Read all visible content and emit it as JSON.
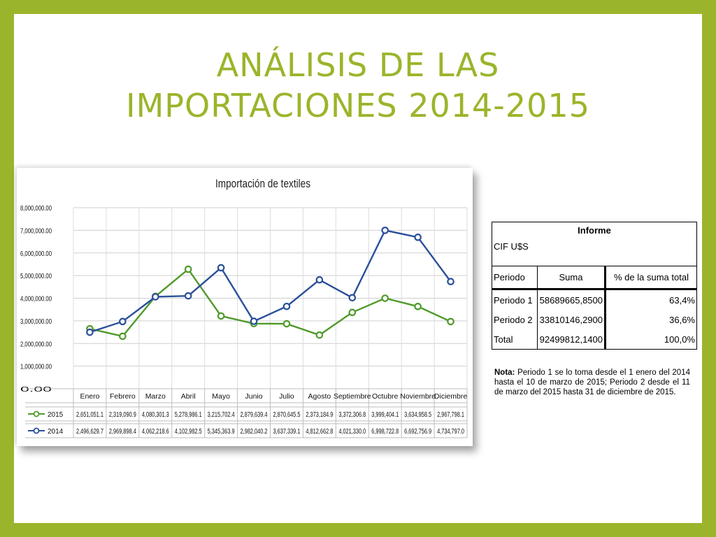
{
  "title": {
    "line1": "ANÁLISIS DE LAS",
    "line2": "IMPORTACIONES 2014-2015"
  },
  "chart_data": {
    "type": "line",
    "title": "Importación de textiles",
    "categories": [
      "Enero",
      "Febrero",
      "Marzo",
      "Abril",
      "Mayo",
      "Junio",
      "Julio",
      "Agosto",
      "Septiembre",
      "Octubre",
      "Noviembre",
      "Diciembre"
    ],
    "y_ticks": [
      "8,000,000.00",
      "7,000,000.00",
      "6,000,000.00",
      "5,000,000.00",
      "4,000,000.00",
      "3,000,000.00",
      "2,000,000.00",
      "1,000,000.00",
      "0.00"
    ],
    "ylim": [
      0,
      8000000
    ],
    "grid": true,
    "series": [
      {
        "name": "2015",
        "color": "#4f9a2a",
        "values": [
          2651051.1,
          2319090.9,
          4080301.3,
          5278986.1,
          3215702.4,
          2879639.4,
          2870645.5,
          2373184.9,
          3372306.8,
          3999404.1,
          3634958.5,
          2967798.1
        ],
        "labels": [
          "2,651,051.1",
          "2,319,090.9",
          "4,080,301.3",
          "5,278,986.1",
          "3,215,702.4",
          "2,879,639.4",
          "2,870,645.5",
          "2,373,184.9",
          "3,372,306.8",
          "3,999,404.1",
          "3,634,958.5",
          "2,967,798.1"
        ]
      },
      {
        "name": "2014",
        "color": "#2a4f9a",
        "values": [
          2496629.7,
          2969898.4,
          4062218.6,
          4102982.5,
          5345363.9,
          2982040.2,
          3637339.1,
          4812662.8,
          4021330.0,
          6998722.8,
          6692756.9,
          4734797.0
        ],
        "labels": [
          "2,496,629.7",
          "2,969,898.4",
          "4,062,218.6",
          "4,102,982.5",
          "5,345,363.9",
          "2,982,040.2",
          "3,637,339.1",
          "4,812,662.8",
          "4,021,330.0",
          "6,998,722.8",
          "6,692,756.9",
          "4,734,797.0"
        ]
      }
    ]
  },
  "informe": {
    "header": "Informe",
    "cif": "CIF U$S",
    "columns": [
      "Periodo",
      "Suma",
      "% de la suma total"
    ],
    "rows": [
      {
        "periodo": "Periodo 1",
        "suma": "58689665,8500",
        "pct": "63,4%"
      },
      {
        "periodo": "Periodo 2",
        "suma": "33810146,2900",
        "pct": "36,6%"
      },
      {
        "periodo": "Total",
        "suma": "92499812,1400",
        "pct": "100,0%"
      }
    ]
  },
  "nota": {
    "label": "Nota:",
    "text": " Periodo 1 se lo toma desde el 1 enero del 2014 hasta el 10 de marzo de 2015; Periodo 2 desde el 11 de marzo del 2015 hasta 31 de diciembre de 2015."
  }
}
